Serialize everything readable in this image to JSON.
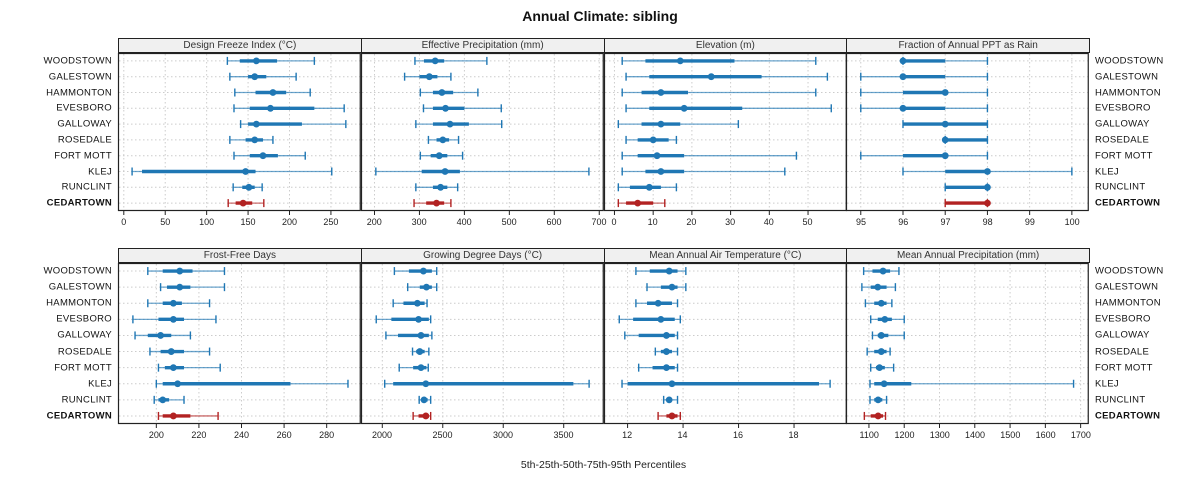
{
  "title": "Annual Climate: sibling",
  "footer_caption": "5th-25th-50th-75th-95th Percentiles",
  "stations": [
    "WOODSTOWN",
    "GALESTOWN",
    "HAMMONTON",
    "EVESBORO",
    "GALLOWAY",
    "ROSEDALE",
    "FORT MOTT",
    "KLEJ",
    "RUNCLINT",
    "CEDARTOWN"
  ],
  "highlighted_station": "CEDARTOWN",
  "colors": {
    "series": "#1f77b4",
    "highlight": "#b22222",
    "grid": "#cccccc",
    "panel_border": "#222222",
    "header_bg": "#f0f0f0",
    "text": "#111111"
  },
  "chart_data": {
    "type": "scatter",
    "subtype": "percentile-dot-whisker",
    "legend_position": "none",
    "grid": "dashed-both-axes",
    "percentiles": [
      "5th",
      "25th",
      "50th",
      "75th",
      "95th"
    ],
    "categories": [
      "WOODSTOWN",
      "GALESTOWN",
      "HAMMONTON",
      "EVESBORO",
      "GALLOWAY",
      "ROSEDALE",
      "FORT MOTT",
      "KLEJ",
      "RUNCLINT",
      "CEDARTOWN"
    ],
    "panels": [
      {
        "title": "Design Freeze Index (°C)",
        "xticks": [
          0,
          50,
          100,
          150,
          200,
          250
        ],
        "xlim": [
          -7,
          286
        ],
        "values": [
          [
            125,
            140,
            160,
            185,
            230
          ],
          [
            128,
            150,
            158,
            172,
            208
          ],
          [
            134,
            159,
            180,
            196,
            225
          ],
          [
            133,
            152,
            177,
            230,
            266
          ],
          [
            141,
            150,
            160,
            215,
            268
          ],
          [
            128,
            147,
            158,
            168,
            180
          ],
          [
            133,
            152,
            168,
            186,
            219
          ],
          [
            10,
            22,
            147,
            159,
            251
          ],
          [
            132,
            143,
            151,
            158,
            167
          ],
          [
            126,
            135,
            144,
            155,
            169
          ]
        ]
      },
      {
        "title": "Effective Precipitation (mm)",
        "xticks": [
          200,
          300,
          400,
          500,
          600,
          700
        ],
        "xlim": [
          170,
          710
        ],
        "values": [
          [
            290,
            310,
            335,
            355,
            450
          ],
          [
            267,
            300,
            322,
            340,
            370
          ],
          [
            302,
            330,
            350,
            375,
            430
          ],
          [
            309,
            330,
            358,
            400,
            482
          ],
          [
            292,
            330,
            368,
            410,
            483
          ],
          [
            320,
            338,
            352,
            366,
            387
          ],
          [
            302,
            325,
            344,
            362,
            396
          ],
          [
            203,
            305,
            357,
            390,
            677
          ],
          [
            292,
            330,
            347,
            362,
            385
          ],
          [
            288,
            315,
            338,
            355,
            370
          ]
        ]
      },
      {
        "title": "Elevation (m)",
        "xticks": [
          0,
          10,
          20,
          30,
          40,
          50
        ],
        "xlim": [
          -2.7,
          60
        ],
        "values": [
          [
            2,
            8,
            17,
            31,
            52
          ],
          [
            3,
            9,
            25,
            38,
            55
          ],
          [
            2,
            7,
            12,
            19,
            52
          ],
          [
            3,
            9,
            18,
            33,
            56
          ],
          [
            1,
            7,
            12,
            17,
            32
          ],
          [
            3,
            6,
            10,
            14,
            16
          ],
          [
            2,
            6,
            11,
            18,
            47
          ],
          [
            2,
            8,
            12,
            18,
            44
          ],
          [
            1,
            4,
            9,
            12,
            16
          ],
          [
            1,
            3,
            6,
            10,
            13
          ]
        ]
      },
      {
        "title": "Fraction of Annual PPT as Rain",
        "xticks": [
          95,
          96,
          97,
          98,
          99,
          100
        ],
        "xlim": [
          94.65,
          100.4
        ],
        "values": [
          [
            96,
            96,
            96,
            97,
            98
          ],
          [
            95,
            96,
            96,
            97,
            98
          ],
          [
            95,
            96,
            97,
            97,
            98
          ],
          [
            95,
            96,
            96,
            97,
            98
          ],
          [
            96,
            96,
            97,
            98,
            98
          ],
          [
            97,
            97,
            97,
            98,
            98
          ],
          [
            95,
            96,
            97,
            97,
            98
          ],
          [
            96,
            97,
            98,
            98,
            100
          ],
          [
            97,
            97,
            98,
            98,
            98
          ],
          [
            97,
            97,
            98,
            98,
            98
          ]
        ]
      },
      {
        "title": "Frost-Free Days",
        "xticks": [
          200,
          220,
          240,
          260,
          280
        ],
        "xlim": [
          182,
          296
        ],
        "values": [
          [
            196,
            203,
            211,
            217,
            232
          ],
          [
            202,
            205,
            211,
            216,
            232
          ],
          [
            196,
            203,
            208,
            212,
            225
          ],
          [
            189,
            201,
            208,
            213,
            228
          ],
          [
            190,
            196,
            202,
            207,
            216
          ],
          [
            197,
            202,
            207,
            213,
            225
          ],
          [
            201,
            204,
            208,
            213,
            230
          ],
          [
            200,
            203,
            210,
            263,
            290
          ],
          [
            199,
            201,
            203,
            206,
            213
          ],
          [
            201,
            203,
            208,
            216,
            229
          ]
        ]
      },
      {
        "title": "Growing Degree Days (°C)",
        "xticks": [
          2000,
          2500,
          3000,
          3500
        ],
        "xlim": [
          1824,
          3831
        ],
        "values": [
          [
            2100,
            2220,
            2340,
            2410,
            2450
          ],
          [
            2210,
            2310,
            2365,
            2410,
            2450
          ],
          [
            2090,
            2175,
            2290,
            2350,
            2370
          ],
          [
            1950,
            2075,
            2300,
            2385,
            2400
          ],
          [
            2030,
            2130,
            2320,
            2385,
            2410
          ],
          [
            2250,
            2280,
            2310,
            2350,
            2385
          ],
          [
            2140,
            2255,
            2320,
            2365,
            2380
          ],
          [
            2020,
            2090,
            2360,
            3580,
            3710
          ],
          [
            2305,
            2330,
            2345,
            2375,
            2400
          ],
          [
            2255,
            2300,
            2360,
            2385,
            2400
          ]
        ]
      },
      {
        "title": "Mean Annual Air Temperature (°C)",
        "xticks": [
          12,
          14,
          16,
          18
        ],
        "xlim": [
          11.15,
          19.9
        ],
        "values": [
          [
            12.3,
            12.8,
            13.5,
            13.8,
            14.1
          ],
          [
            12.7,
            13.2,
            13.6,
            13.8,
            14.1
          ],
          [
            12.3,
            12.7,
            13.1,
            13.6,
            13.8
          ],
          [
            11.7,
            12.2,
            13.2,
            13.7,
            13.9
          ],
          [
            11.9,
            12.4,
            13.4,
            13.7,
            13.8
          ],
          [
            13.0,
            13.2,
            13.4,
            13.6,
            13.8
          ],
          [
            12.4,
            12.9,
            13.4,
            13.7,
            13.8
          ],
          [
            11.8,
            12.0,
            13.6,
            18.9,
            19.3
          ],
          [
            13.3,
            13.4,
            13.5,
            13.6,
            13.8
          ],
          [
            13.1,
            13.4,
            13.6,
            13.8,
            13.9
          ]
        ]
      },
      {
        "title": "Mean Annual Precipitation (mm)",
        "xticks": [
          1100,
          1200,
          1300,
          1400,
          1500,
          1600,
          1700
        ],
        "xlim": [
          1035,
          1723
        ],
        "values": [
          [
            1085,
            1110,
            1140,
            1160,
            1185
          ],
          [
            1080,
            1105,
            1125,
            1150,
            1175
          ],
          [
            1090,
            1115,
            1135,
            1150,
            1165
          ],
          [
            1105,
            1125,
            1145,
            1165,
            1200
          ],
          [
            1110,
            1125,
            1135,
            1155,
            1200
          ],
          [
            1095,
            1115,
            1135,
            1150,
            1160
          ],
          [
            1105,
            1120,
            1130,
            1145,
            1170
          ],
          [
            1103,
            1115,
            1143,
            1220,
            1680
          ],
          [
            1103,
            1115,
            1126,
            1138,
            1150
          ],
          [
            1087,
            1105,
            1126,
            1140,
            1147
          ]
        ]
      }
    ]
  }
}
